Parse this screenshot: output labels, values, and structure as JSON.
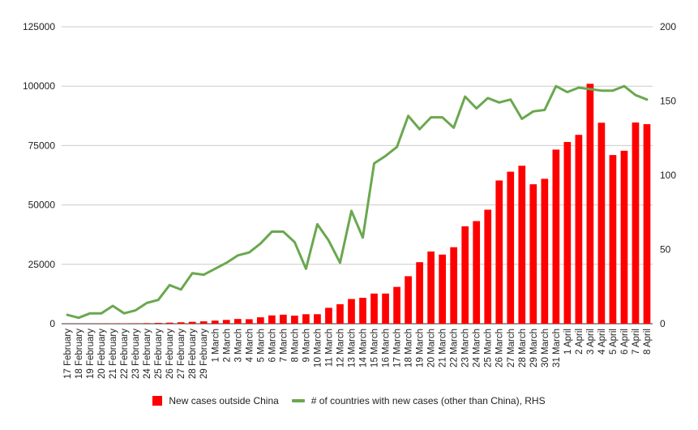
{
  "chart_data": {
    "type": "bar",
    "categories": [
      "17 February",
      "18 February",
      "19 February",
      "20 February",
      "21 February",
      "22 February",
      "23 February",
      "24 February",
      "25 February",
      "26 February",
      "27 February",
      "28 February",
      "29 February",
      "1 March",
      "2 March",
      "3 March",
      "4 March",
      "5 March",
      "6 March",
      "7 March",
      "8 March",
      "9 March",
      "10 March",
      "11 March",
      "12 March",
      "13 March",
      "14 March",
      "15 March",
      "16 March",
      "17 March",
      "18 March",
      "19 March",
      "20 March",
      "21 March",
      "22 March",
      "23 March",
      "24 March",
      "25 March",
      "26 March",
      "27 March",
      "28 March",
      "29 March",
      "30 March",
      "31 March",
      "1 April",
      "2 April",
      "3 April",
      "4 April",
      "5 April",
      "6 April",
      "7 April",
      "8 April"
    ],
    "series": [
      {
        "name": "New cases outside China",
        "kind": "bar",
        "axis": "left",
        "color": "#ff0000",
        "values": [
          40,
          60,
          80,
          100,
          120,
          150,
          200,
          250,
          350,
          450,
          600,
          800,
          1000,
          1300,
          1600,
          2000,
          1900,
          2700,
          3500,
          3800,
          3400,
          4000,
          4000,
          6700,
          8200,
          10400,
          10900,
          12700,
          12700,
          15500,
          20000,
          25900,
          30400,
          29100,
          32200,
          41000,
          43200,
          48000,
          60300,
          64000,
          66500,
          58700,
          61000,
          73300,
          76500,
          79500,
          101000,
          84600,
          71000,
          72800,
          84700,
          84000
        ]
      },
      {
        "name": "# of countries with new cases (other than China), RHS",
        "kind": "line",
        "axis": "right",
        "color": "#6aa84f",
        "values": [
          6,
          4,
          7,
          7,
          12,
          7,
          9,
          14,
          16,
          26,
          23,
          34,
          33,
          37,
          41,
          46,
          48,
          54,
          62,
          62,
          55,
          37,
          67,
          56,
          41,
          76,
          58,
          108,
          113,
          119,
          140,
          131,
          139,
          139,
          132,
          153,
          145,
          152,
          149,
          151,
          138,
          143,
          144,
          160,
          156,
          159,
          158,
          157,
          157,
          160,
          154,
          151
        ]
      }
    ],
    "y_left": {
      "min": 0,
      "max": 125000,
      "ticks": [
        0,
        25000,
        50000,
        75000,
        100000,
        125000
      ]
    },
    "y_right": {
      "min": 0,
      "max": 200,
      "ticks": [
        0,
        50,
        100,
        150,
        200
      ]
    },
    "grid": true,
    "legend_position": "bottom"
  }
}
